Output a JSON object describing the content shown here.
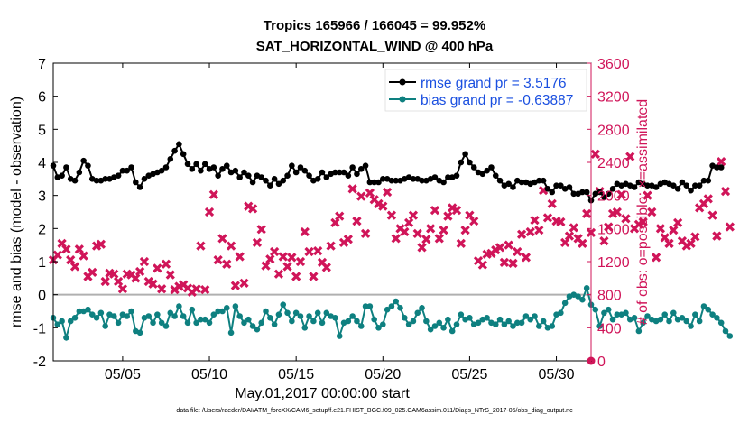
{
  "title_line1": "Tropics 165966 / 166045 = 99.952%",
  "title_line2": "SAT_HORIZONTAL_WIND @ 400 hPa",
  "footnote": "data file: /Users/raeder/DAI/ATM_forcXX/CAM6_setup/f.e21.FHIST_BGC.f09_025.CAM6assim.011/Diags_NTrS_2017-05/obs_diag_output.nc",
  "colors": {
    "rmse": "#000000",
    "bias": "#0e8080",
    "obs": "#d01559",
    "legend_text": "#1a4fe0",
    "zero_line": "#b0b0b0"
  },
  "chart_data": {
    "type": "line",
    "xlabel": "May.01,2017 00:00:00 start",
    "ylabel_left": "rmse and bias (model - observation)",
    "ylabel_right": "# of obs: o=possible; ×=assimilated",
    "x_range": [
      1.0,
      32.0
    ],
    "xticks": [
      5,
      10,
      15,
      20,
      25,
      30
    ],
    "xtick_labels": [
      "05/05",
      "05/10",
      "05/15",
      "05/20",
      "05/25",
      "05/30"
    ],
    "ylim_left": [
      -2,
      7
    ],
    "yticks_left": [
      -2,
      -1,
      0,
      1,
      2,
      3,
      4,
      5,
      6,
      7
    ],
    "ytick_labels_left": [
      "-2",
      "-1",
      "0",
      "1",
      "2",
      "3",
      "4",
      "5",
      "6",
      "7"
    ],
    "ylim_right": [
      0,
      3600
    ],
    "yticks_right": [
      0,
      400,
      800,
      1200,
      1600,
      2000,
      2400,
      2800,
      3200,
      3600
    ],
    "ytick_labels_right": [
      "0",
      "400",
      "800",
      "1200",
      "1600",
      "2000",
      "2400",
      "2800",
      "3200",
      "3600"
    ],
    "legend": [
      {
        "name": "rmse",
        "label": "rmse grand pr = 3.5176"
      },
      {
        "name": "bias",
        "label": "bias grand pr = -0.63887"
      }
    ],
    "series": [
      {
        "name": "rmse",
        "x_start": 1.0,
        "x_step": 0.25,
        "values": [
          3.9,
          3.55,
          3.6,
          3.85,
          3.5,
          3.45,
          3.7,
          4.05,
          3.9,
          3.5,
          3.45,
          3.45,
          3.5,
          3.5,
          3.55,
          3.6,
          3.75,
          3.75,
          3.85,
          3.4,
          3.25,
          3.5,
          3.6,
          3.65,
          3.7,
          3.75,
          3.85,
          4.1,
          4.35,
          4.55,
          4.25,
          3.95,
          3.8,
          3.95,
          3.75,
          3.95,
          3.8,
          3.85,
          3.6,
          3.8,
          3.9,
          3.7,
          3.75,
          3.55,
          3.7,
          3.6,
          3.4,
          3.6,
          3.55,
          3.45,
          3.3,
          3.5,
          3.35,
          3.45,
          3.6,
          3.9,
          3.7,
          3.85,
          3.75,
          3.6,
          3.45,
          3.5,
          3.7,
          3.55,
          3.65,
          3.7,
          3.7,
          3.7,
          3.6,
          3.85,
          3.65,
          3.8,
          3.9,
          3.4,
          3.4,
          3.4,
          3.5,
          3.5,
          3.45,
          3.45,
          3.45,
          3.5,
          3.55,
          3.5,
          3.5,
          3.45,
          3.45,
          3.5,
          3.55,
          3.45,
          3.4,
          3.55,
          3.55,
          3.6,
          4.0,
          4.25,
          4.0,
          3.85,
          3.7,
          3.65,
          3.75,
          3.85,
          3.6,
          3.45,
          3.3,
          3.35,
          3.25,
          3.45,
          3.4,
          3.4,
          3.35,
          3.4,
          3.45,
          3.45,
          3.2,
          3.1,
          3.3,
          3.3,
          3.2,
          3.25,
          3.05,
          3.05,
          3.1,
          3.1,
          2.85,
          3.05,
          3.1,
          2.95,
          3.05,
          3.2,
          3.35,
          3.3,
          3.35,
          3.3,
          3.25,
          3.4,
          3.35,
          3.3,
          3.3,
          3.25,
          3.35,
          3.4,
          3.35,
          3.3,
          3.2,
          3.4,
          3.3,
          3.15,
          3.3,
          3.3,
          3.45,
          3.45,
          3.9,
          3.85,
          3.85
        ]
      },
      {
        "name": "bias",
        "x_start": 1.0,
        "x_step": 0.25,
        "values": [
          -0.7,
          -0.9,
          -0.8,
          -1.3,
          -0.8,
          -0.7,
          -0.5,
          -0.5,
          -0.45,
          -0.6,
          -0.7,
          -0.55,
          -0.95,
          -0.6,
          -0.65,
          -0.85,
          -0.6,
          -0.65,
          -0.5,
          -1.1,
          -1.15,
          -0.7,
          -0.65,
          -0.85,
          -0.6,
          -0.85,
          -0.95,
          -0.55,
          -0.65,
          -0.35,
          -0.65,
          -0.85,
          -0.45,
          -0.85,
          -0.75,
          -0.75,
          -0.85,
          -0.6,
          -0.5,
          -0.5,
          -0.4,
          -1.15,
          -0.35,
          -0.65,
          -0.85,
          -0.75,
          -0.95,
          -1.05,
          -0.85,
          -0.5,
          -0.7,
          -0.9,
          -0.6,
          -0.3,
          -0.55,
          -0.8,
          -0.55,
          -0.65,
          -1.0,
          -0.65,
          -0.8,
          -0.55,
          -0.85,
          -0.55,
          -0.65,
          -0.7,
          -1.25,
          -0.85,
          -0.8,
          -0.65,
          -0.8,
          -0.95,
          -0.35,
          -0.35,
          -0.75,
          -1.0,
          -0.9,
          -0.45,
          -0.35,
          -0.2,
          -0.4,
          -0.7,
          -0.9,
          -0.8,
          -0.55,
          -0.4,
          -0.8,
          -1.05,
          -0.95,
          -0.85,
          -1.0,
          -0.75,
          -1.1,
          -0.9,
          -0.6,
          -0.75,
          -0.7,
          -0.9,
          -0.85,
          -0.75,
          -0.7,
          -0.85,
          -0.9,
          -0.75,
          -0.9,
          -0.8,
          -0.95,
          -0.85,
          -0.85,
          -0.65,
          -0.75,
          -0.65,
          -0.95,
          -0.8,
          -1.0,
          -0.95,
          -0.6,
          -0.55,
          -0.25,
          -0.05,
          0.0,
          -0.05,
          -0.15,
          0.2,
          -0.3,
          -0.45,
          -0.95,
          -0.55,
          -0.45,
          -0.75,
          -0.6,
          -0.6,
          -0.55,
          -0.75,
          -0.7,
          -1.1,
          -0.85,
          -0.65,
          -0.75,
          -0.8,
          -0.75,
          -0.6,
          -0.8,
          -0.55,
          -0.75,
          -0.7,
          -0.8,
          -0.95,
          -0.6,
          -0.8,
          -0.35,
          -0.45,
          -0.6,
          -0.7,
          -0.85,
          -1.1,
          -1.25
        ]
      }
    ],
    "obs_count": {
      "name": "assimilated",
      "x_start": 1.0,
      "x_step": 0.25,
      "values": [
        1220,
        1280,
        1420,
        1350,
        1220,
        1140,
        1350,
        1270,
        1020,
        1070,
        1390,
        1410,
        960,
        1060,
        1050,
        960,
        870,
        1050,
        1040,
        1000,
        1080,
        1200,
        960,
        930,
        1120,
        870,
        1170,
        1040,
        860,
        900,
        920,
        880,
        830,
        870,
        1390,
        860,
        1800,
        2010,
        1220,
        1480,
        1170,
        1390,
        910,
        1260,
        940,
        1870,
        1840,
        1430,
        1590,
        1150,
        1230,
        1320,
        1050,
        1260,
        1140,
        1250,
        1020,
        1200,
        1560,
        1320,
        1020,
        1330,
        1190,
        1130,
        1390,
        1670,
        1750,
        1430,
        1470,
        2080,
        1690,
        1990,
        1540,
        2030,
        1950,
        1900,
        1870,
        2040,
        1760,
        1480,
        1600,
        1560,
        1670,
        1760,
        1540,
        1370,
        1470,
        1600,
        1820,
        1480,
        1580,
        1750,
        1850,
        1820,
        1420,
        1580,
        1760,
        1690,
        1210,
        1160,
        1290,
        1300,
        1340,
        1370,
        1190,
        1400,
        1180,
        1320,
        1530,
        1250,
        1560,
        1700,
        1580,
        2060,
        1730,
        1900,
        1690,
        1680,
        1430,
        1510,
        1610,
        1480,
        1420,
        1780,
        1550,
        2500,
        2050,
        1450,
        1620,
        1780,
        1800,
        2010,
        1720,
        2470,
        1600,
        1650,
        1680,
        2000,
        1800,
        1250,
        1600,
        1490,
        1420,
        1580,
        1670,
        1450,
        1390,
        1420,
        1500,
        1850,
        1900,
        1960,
        1760,
        1510,
        2410,
        2050,
        1620
      ]
    }
  }
}
